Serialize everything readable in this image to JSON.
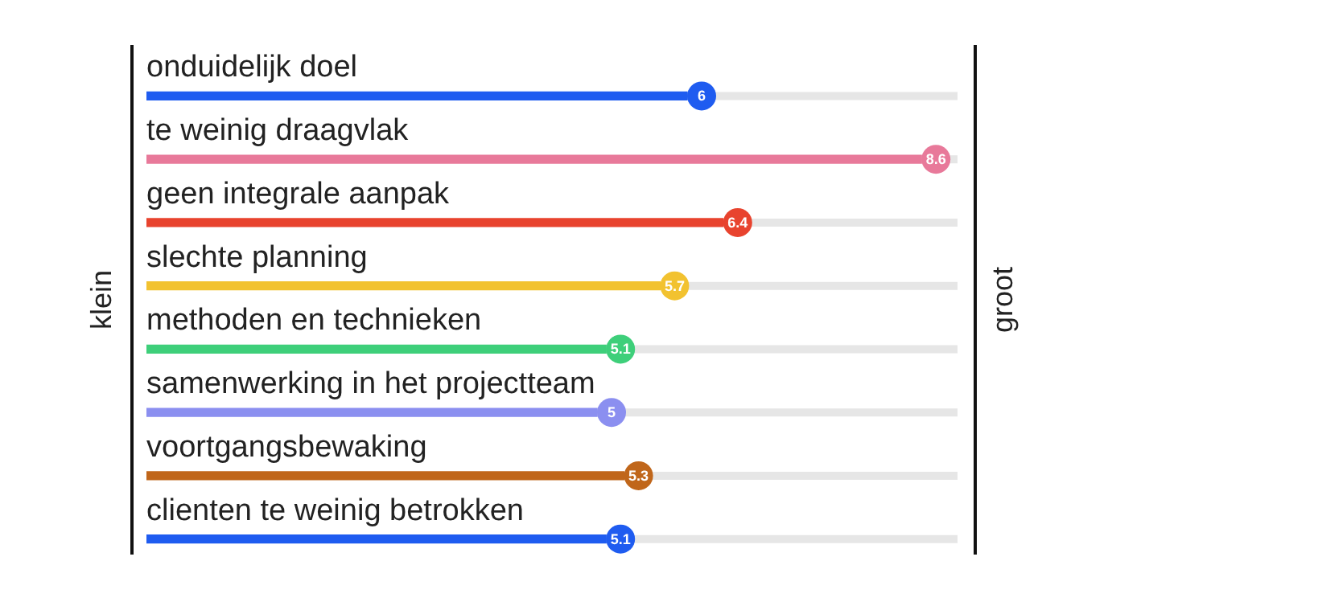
{
  "chart_data": {
    "type": "bar",
    "orientation": "horizontal",
    "ylabel": "klein",
    "y2label": "groot",
    "data_labels": true,
    "legend": false,
    "categories": [
      "onduidelijk doel",
      "te weinig draagvlak",
      "geen integrale aanpak",
      "slechte planning",
      "methoden en technieken",
      "samenwerking in het projectteam",
      "voortgangsbewaking",
      "clienten te weinig betrokken"
    ],
    "values": [
      6,
      8.6,
      6.4,
      5.7,
      5.1,
      5,
      5.3,
      5.1
    ],
    "colors": [
      "#1f5cf0",
      "#e8799a",
      "#e8432e",
      "#f2c230",
      "#3ecf7a",
      "#8b8ff0",
      "#c0661a",
      "#1f5cf0"
    ]
  }
}
